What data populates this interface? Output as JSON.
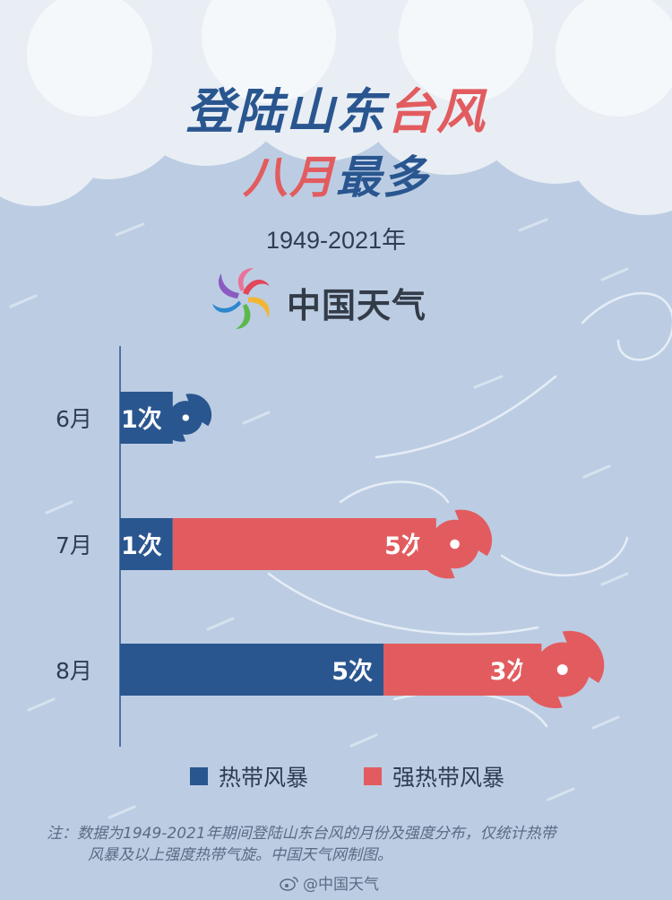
{
  "title": {
    "line1_part1": "登陆山东",
    "line1_part2": "台风",
    "line2_part1": "八月",
    "line2_part2": "最多"
  },
  "year_range": "1949-2021年",
  "brand": {
    "name": "中国天气"
  },
  "colors": {
    "tropical_storm": "#2a5690",
    "severe_tropical_storm": "#e25c5f",
    "background": "#bccde3"
  },
  "chart_data": {
    "type": "bar",
    "orientation": "horizontal",
    "stacked": true,
    "categories": [
      "6月",
      "7月",
      "8月"
    ],
    "series": [
      {
        "name": "热带风暴",
        "values": [
          1,
          1,
          5
        ],
        "labels": [
          "1次",
          "1次",
          "5次"
        ]
      },
      {
        "name": "强热带风暴",
        "values": [
          0,
          5,
          3
        ],
        "labels": [
          "",
          "5次",
          "3次"
        ]
      }
    ],
    "legend_position": "bottom",
    "grid": false
  },
  "footnote": {
    "line1": "注：数据为1949-2021年期间登陆山东台风的月份及强度分布，仅统计热带",
    "line2": "风暴及以上强度热带气旋。中国天气网制图。"
  },
  "credit": "@中国天气"
}
